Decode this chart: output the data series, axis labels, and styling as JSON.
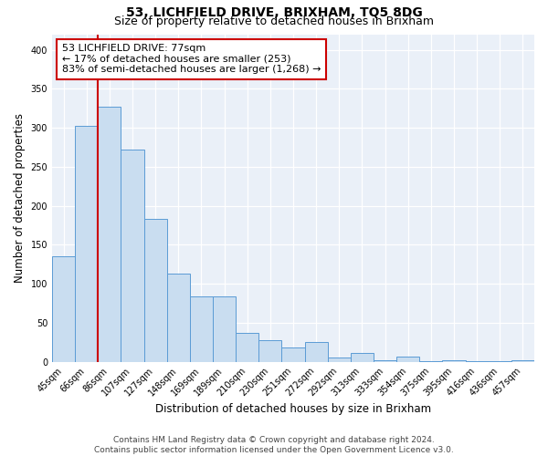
{
  "title": "53, LICHFIELD DRIVE, BRIXHAM, TQ5 8DG",
  "subtitle": "Size of property relative to detached houses in Brixham",
  "xlabel": "Distribution of detached houses by size in Brixham",
  "ylabel": "Number of detached properties",
  "bar_labels": [
    "45sqm",
    "66sqm",
    "86sqm",
    "107sqm",
    "127sqm",
    "148sqm",
    "169sqm",
    "189sqm",
    "210sqm",
    "230sqm",
    "251sqm",
    "272sqm",
    "292sqm",
    "313sqm",
    "333sqm",
    "354sqm",
    "375sqm",
    "395sqm",
    "416sqm",
    "436sqm",
    "457sqm"
  ],
  "bar_values": [
    135,
    303,
    327,
    272,
    183,
    113,
    84,
    84,
    37,
    27,
    18,
    25,
    5,
    11,
    2,
    6,
    1,
    2,
    1,
    1,
    2
  ],
  "bar_color": "#c9ddf0",
  "bar_edge_color": "#5b9bd5",
  "red_line_x": 1.5,
  "annotation_line1": "53 LICHFIELD DRIVE: 77sqm",
  "annotation_line2": "← 17% of detached houses are smaller (253)",
  "annotation_line3": "83% of semi-detached houses are larger (1,268) →",
  "annotation_box_color": "white",
  "annotation_box_edge_color": "#cc0000",
  "ylim": [
    0,
    420
  ],
  "yticks": [
    0,
    50,
    100,
    150,
    200,
    250,
    300,
    350,
    400
  ],
  "footer_line1": "Contains HM Land Registry data © Crown copyright and database right 2024.",
  "footer_line2": "Contains public sector information licensed under the Open Government Licence v3.0.",
  "bg_color": "#eaf0f8",
  "fig_bg_color": "#ffffff",
  "title_fontsize": 10,
  "subtitle_fontsize": 9,
  "axis_label_fontsize": 8.5,
  "tick_fontsize": 7,
  "footer_fontsize": 6.5,
  "annotation_fontsize": 8
}
